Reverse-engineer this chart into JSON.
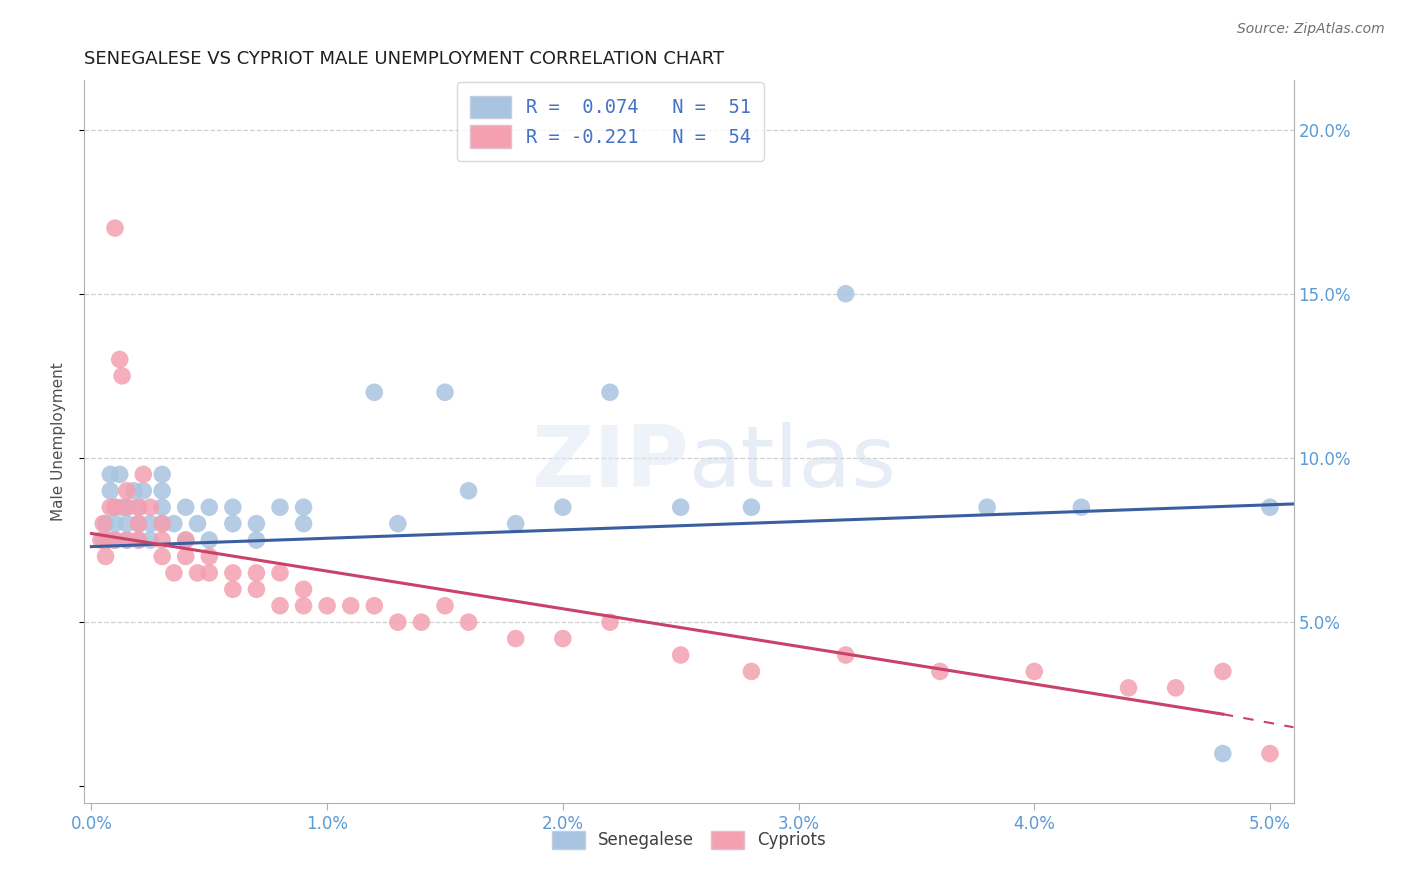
{
  "title": "SENEGALESE VS CYPRIOT MALE UNEMPLOYMENT CORRELATION CHART",
  "source": "Source: ZipAtlas.com",
  "ylabel": "Male Unemployment",
  "xlim": [
    -0.0003,
    0.051
  ],
  "ylim": [
    -0.005,
    0.215
  ],
  "senegalese_color": "#a8c4e0",
  "cypriot_color": "#f4a0b0",
  "senegalese_line_color": "#3a5fa0",
  "cypriot_line_color": "#c8426a",
  "legend_r_senegalese": "R =  0.074   N =  51",
  "legend_r_cypriot": "R = -0.221   N =  54",
  "senegalese_x": [
    0.0005,
    0.0006,
    0.0007,
    0.0008,
    0.0008,
    0.001,
    0.001,
    0.001,
    0.0012,
    0.0013,
    0.0015,
    0.0015,
    0.0015,
    0.0018,
    0.002,
    0.002,
    0.002,
    0.0022,
    0.0025,
    0.0025,
    0.003,
    0.003,
    0.003,
    0.003,
    0.0035,
    0.004,
    0.004,
    0.0045,
    0.005,
    0.005,
    0.006,
    0.006,
    0.007,
    0.007,
    0.008,
    0.009,
    0.009,
    0.012,
    0.013,
    0.015,
    0.016,
    0.018,
    0.02,
    0.022,
    0.025,
    0.028,
    0.032,
    0.038,
    0.042,
    0.048,
    0.05
  ],
  "senegalese_y": [
    0.075,
    0.08,
    0.075,
    0.09,
    0.095,
    0.075,
    0.08,
    0.085,
    0.095,
    0.085,
    0.08,
    0.085,
    0.075,
    0.09,
    0.075,
    0.08,
    0.085,
    0.09,
    0.075,
    0.08,
    0.08,
    0.085,
    0.09,
    0.095,
    0.08,
    0.075,
    0.085,
    0.08,
    0.075,
    0.085,
    0.08,
    0.085,
    0.075,
    0.08,
    0.085,
    0.08,
    0.085,
    0.12,
    0.08,
    0.12,
    0.09,
    0.08,
    0.085,
    0.12,
    0.085,
    0.085,
    0.15,
    0.085,
    0.085,
    0.01,
    0.085
  ],
  "cypriot_x": [
    0.0004,
    0.0005,
    0.0006,
    0.0007,
    0.0008,
    0.001,
    0.001,
    0.001,
    0.0012,
    0.0013,
    0.0015,
    0.0015,
    0.0015,
    0.002,
    0.002,
    0.002,
    0.0022,
    0.0025,
    0.003,
    0.003,
    0.003,
    0.0035,
    0.004,
    0.004,
    0.0045,
    0.005,
    0.005,
    0.006,
    0.006,
    0.007,
    0.007,
    0.008,
    0.008,
    0.009,
    0.009,
    0.01,
    0.011,
    0.012,
    0.013,
    0.014,
    0.015,
    0.016,
    0.018,
    0.02,
    0.022,
    0.025,
    0.028,
    0.032,
    0.036,
    0.04,
    0.044,
    0.046,
    0.048,
    0.05
  ],
  "cypriot_y": [
    0.075,
    0.08,
    0.07,
    0.075,
    0.085,
    0.17,
    0.085,
    0.075,
    0.13,
    0.125,
    0.09,
    0.085,
    0.075,
    0.08,
    0.085,
    0.075,
    0.095,
    0.085,
    0.07,
    0.075,
    0.08,
    0.065,
    0.075,
    0.07,
    0.065,
    0.07,
    0.065,
    0.06,
    0.065,
    0.06,
    0.065,
    0.055,
    0.065,
    0.055,
    0.06,
    0.055,
    0.055,
    0.055,
    0.05,
    0.05,
    0.055,
    0.05,
    0.045,
    0.045,
    0.05,
    0.04,
    0.035,
    0.04,
    0.035,
    0.035,
    0.03,
    0.03,
    0.035,
    0.01
  ],
  "senegalese_line_x0": 0.0,
  "senegalese_line_x1": 0.051,
  "senegalese_line_y0": 0.073,
  "senegalese_line_y1": 0.086,
  "cypriot_line_x0": 0.0,
  "cypriot_line_y0": 0.077,
  "cypriot_line_x1_solid": 0.048,
  "cypriot_line_y1_solid": 0.022,
  "cypriot_line_x1_dash": 0.051,
  "cypriot_line_y1_dash": 0.018,
  "yticks": [
    0.0,
    0.05,
    0.1,
    0.15,
    0.2
  ],
  "ytick_labels_right": [
    "",
    "5.0%",
    "10.0%",
    "15.0%",
    "20.0%"
  ],
  "xticks": [
    0.0,
    0.01,
    0.02,
    0.03,
    0.04,
    0.05
  ],
  "xtick_labels": [
    "0.0%",
    "1.0%",
    "2.0%",
    "3.0%",
    "4.0%",
    "5.0%"
  ],
  "tick_color": "#5b9bd5",
  "grid_color": "#d0d0d0",
  "spine_color": "#b0b0b0"
}
